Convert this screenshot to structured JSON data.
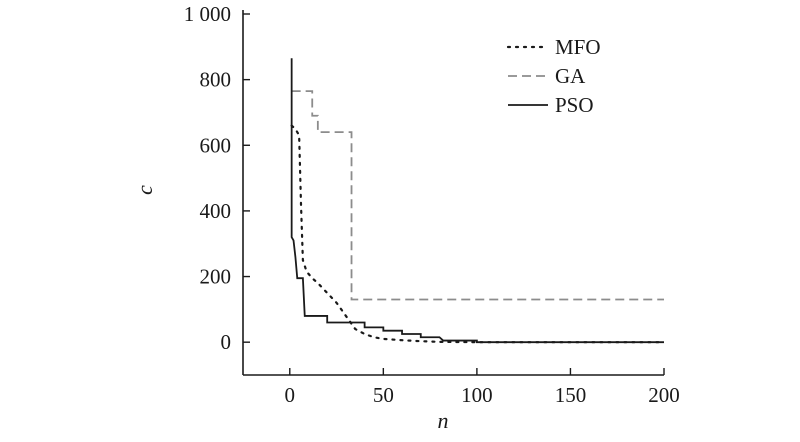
{
  "chart_data": {
    "type": "line",
    "title": "",
    "xlabel": "n",
    "ylabel": "c",
    "xlim": [
      -25,
      200
    ],
    "ylim": [
      -100,
      1000
    ],
    "x_ticks": [
      0,
      50,
      100,
      150,
      200
    ],
    "x_tick_labels": [
      "0",
      "50",
      "100",
      "150",
      "200"
    ],
    "y_ticks": [
      0,
      200,
      400,
      600,
      800,
      1000
    ],
    "y_tick_labels": [
      "0",
      "200",
      "400",
      "600",
      "800",
      "1 000"
    ],
    "grid": false,
    "legend_position": "top-right",
    "series": [
      {
        "name": "MFO",
        "style": "dotted",
        "color": "#1a1a1a",
        "points": [
          [
            1,
            660
          ],
          [
            3,
            650
          ],
          [
            5,
            630
          ],
          [
            6,
            420
          ],
          [
            7,
            250
          ],
          [
            9,
            215
          ],
          [
            12,
            195
          ],
          [
            15,
            180
          ],
          [
            20,
            150
          ],
          [
            25,
            120
          ],
          [
            30,
            80
          ],
          [
            35,
            40
          ],
          [
            40,
            25
          ],
          [
            45,
            15
          ],
          [
            50,
            10
          ],
          [
            60,
            6
          ],
          [
            70,
            3
          ],
          [
            80,
            1
          ],
          [
            100,
            0
          ],
          [
            200,
            0
          ]
        ]
      },
      {
        "name": "GA",
        "style": "dashed",
        "color": "#8c8c8c",
        "points": [
          [
            1,
            765
          ],
          [
            12,
            765
          ],
          [
            12,
            690
          ],
          [
            15,
            690
          ],
          [
            15,
            640
          ],
          [
            33,
            640
          ],
          [
            33,
            130
          ],
          [
            200,
            130
          ]
        ]
      },
      {
        "name": "PSO",
        "style": "solid",
        "color": "#1a1a1a",
        "points": [
          [
            1,
            865
          ],
          [
            1,
            320
          ],
          [
            2,
            310
          ],
          [
            3,
            260
          ],
          [
            4,
            195
          ],
          [
            7,
            195
          ],
          [
            8,
            80
          ],
          [
            20,
            80
          ],
          [
            20,
            60
          ],
          [
            40,
            60
          ],
          [
            40,
            45
          ],
          [
            50,
            45
          ],
          [
            50,
            35
          ],
          [
            60,
            35
          ],
          [
            60,
            25
          ],
          [
            70,
            25
          ],
          [
            70,
            15
          ],
          [
            80,
            15
          ],
          [
            82,
            5
          ],
          [
            100,
            5
          ],
          [
            100,
            0
          ],
          [
            200,
            0
          ]
        ]
      }
    ]
  }
}
